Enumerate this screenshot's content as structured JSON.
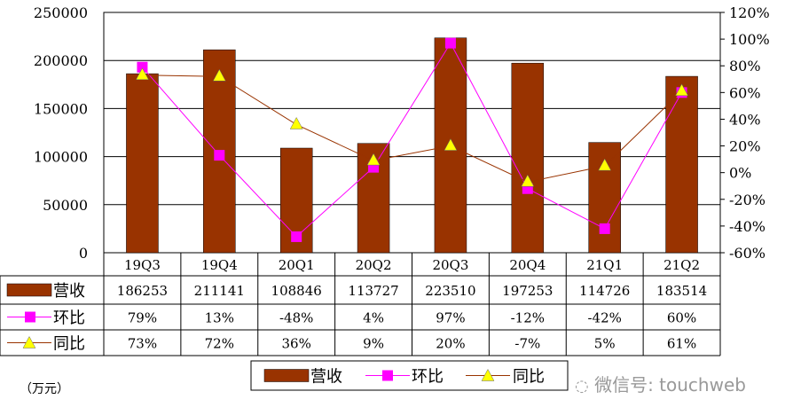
{
  "chart_data": {
    "type": "bar",
    "categories": [
      "19Q3",
      "19Q4",
      "20Q1",
      "20Q2",
      "20Q3",
      "20Q4",
      "21Q1",
      "21Q2"
    ],
    "series": [
      {
        "name": "营收",
        "type": "bar",
        "axis": "left",
        "color": "#993300",
        "values": [
          186253,
          211141,
          108846,
          113727,
          223510,
          197253,
          114726,
          183514
        ],
        "labels": [
          "186253",
          "211141",
          "108846",
          "113727",
          "223510",
          "197253",
          "114726",
          "183514"
        ]
      },
      {
        "name": "环比",
        "type": "line",
        "axis": "right",
        "color": "#FF00FF",
        "marker": "square",
        "values": [
          79,
          13,
          -48,
          4,
          97,
          -12,
          -42,
          60
        ],
        "labels": [
          "79%",
          "13%",
          "-48%",
          "4%",
          "97%",
          "-12%",
          "-42%",
          "60%"
        ]
      },
      {
        "name": "同比",
        "type": "line",
        "axis": "right",
        "color": "#993300",
        "marker_color": "#FFFF00",
        "marker": "triangle",
        "values": [
          73,
          72,
          36,
          9,
          20,
          -7,
          5,
          61
        ],
        "labels": [
          "73%",
          "72%",
          "36%",
          "9%",
          "20%",
          "-7%",
          "5%",
          "61%"
        ]
      }
    ],
    "ylim_left": [
      0,
      250000
    ],
    "yticks_left": [
      "0",
      "50000",
      "100000",
      "150000",
      "200000",
      "250000"
    ],
    "ylim_right": [
      -60,
      120
    ],
    "yticks_right": [
      "-60%",
      "-40%",
      "-20%",
      "0%",
      "20%",
      "40%",
      "60%",
      "80%",
      "100%",
      "120%"
    ],
    "unit_label": "（万元）",
    "grid": true,
    "legend_position": "bottom",
    "data_table": true
  },
  "watermark": "微信号: touchweb"
}
